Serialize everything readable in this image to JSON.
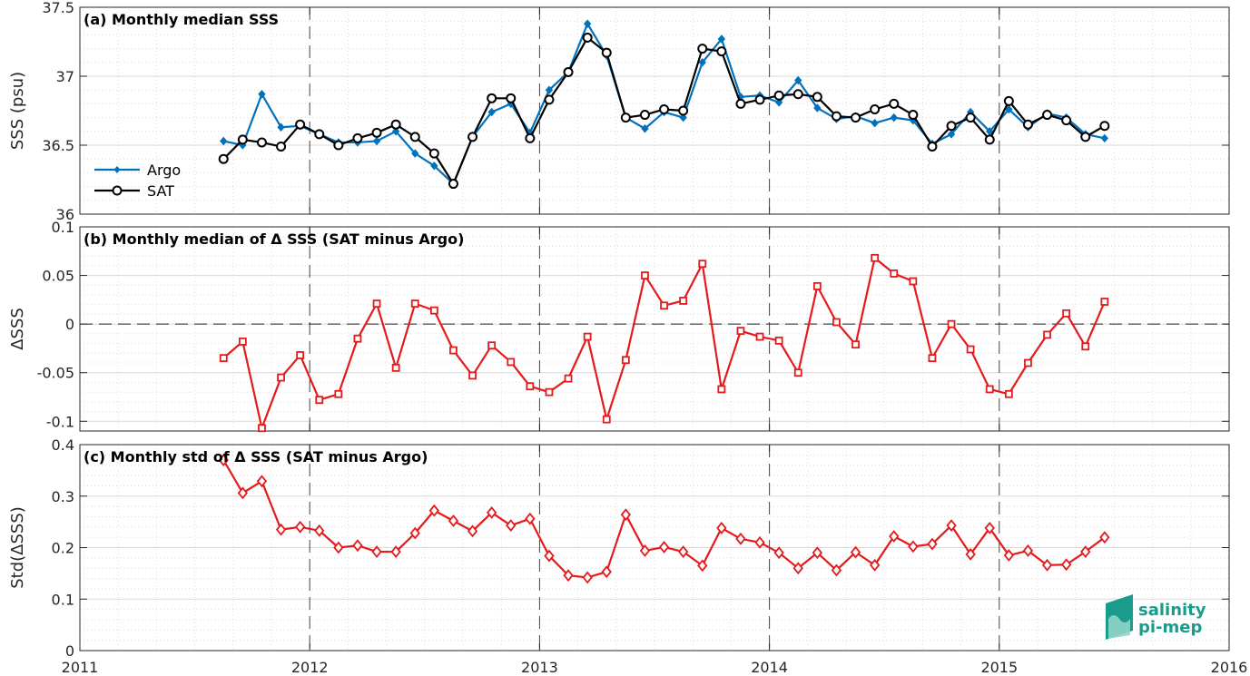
{
  "colors": {
    "argo": "#0072BD",
    "sat": "#000000",
    "delta": "#E41A1C",
    "logo_teal": "#1a9c8c",
    "logo_light": "#8fd6c8"
  },
  "x_axis": {
    "ticks": [
      "2011",
      "2012",
      "2013",
      "2014",
      "2015",
      "2016"
    ],
    "xlim": [
      2011,
      2016
    ]
  },
  "logo": {
    "line1": "salinity",
    "line2": "pi-mep"
  },
  "chart_data": [
    {
      "type": "line",
      "title": "(a) Monthly median SSS",
      "ylabel": "SSS (psu)",
      "ylim": [
        36,
        37.5
      ],
      "yticks": [
        "36",
        "36.5",
        "37",
        "37.5"
      ],
      "legend": "bottom-left",
      "grid": true,
      "x_start": "2011-08",
      "x_step": "1 month",
      "series": [
        {
          "name": "Argo",
          "marker": "diamond-filled",
          "values": [
            36.53,
            36.5,
            36.87,
            36.63,
            36.64,
            36.58,
            36.52,
            36.52,
            36.53,
            36.6,
            36.44,
            36.35,
            36.22,
            36.56,
            36.74,
            36.8,
            36.59,
            36.9,
            37.03,
            37.38,
            37.15,
            36.7,
            36.62,
            36.74,
            36.7,
            37.1,
            37.27,
            36.85,
            36.86,
            36.81,
            36.97,
            36.77,
            36.69,
            36.71,
            36.66,
            36.7,
            36.68,
            36.51,
            36.58,
            36.74,
            36.6,
            36.76,
            36.63,
            36.73,
            36.7,
            36.58,
            36.55
          ]
        },
        {
          "name": "SAT",
          "marker": "circle-open",
          "values": [
            36.4,
            36.54,
            36.52,
            36.49,
            36.65,
            36.58,
            36.5,
            36.55,
            36.59,
            36.65,
            36.56,
            36.44,
            36.22,
            36.56,
            36.84,
            36.84,
            36.55,
            36.83,
            37.03,
            37.28,
            37.17,
            36.7,
            36.72,
            36.76,
            36.75,
            37.2,
            37.18,
            36.8,
            36.83,
            36.86,
            36.87,
            36.85,
            36.71,
            36.7,
            36.76,
            36.8,
            36.72,
            36.49,
            36.64,
            36.7,
            36.54,
            36.82,
            36.65,
            36.72,
            36.68,
            36.56,
            36.64
          ]
        }
      ]
    },
    {
      "type": "line",
      "title": "(b) Monthly median of Δ SSS (SAT minus Argo)",
      "ylabel": "ΔSSS",
      "ylim": [
        -0.11,
        0.1
      ],
      "yticks": [
        "-0.1",
        "-0.05",
        "0",
        "0.05",
        "0.1"
      ],
      "grid": true,
      "zero_line": true,
      "x_start": "2011-08",
      "x_step": "1 month",
      "series": [
        {
          "marker": "square-open",
          "values": [
            -0.035,
            -0.018,
            -0.107,
            -0.055,
            -0.032,
            -0.078,
            -0.072,
            -0.015,
            0.021,
            -0.045,
            0.021,
            0.014,
            -0.027,
            -0.053,
            -0.022,
            -0.039,
            -0.064,
            -0.07,
            -0.056,
            -0.013,
            -0.098,
            -0.037,
            0.05,
            0.019,
            0.024,
            0.062,
            -0.067,
            -0.007,
            -0.013,
            -0.017,
            -0.05,
            0.039,
            0.002,
            -0.021,
            0.068,
            0.052,
            0.044,
            -0.035,
            0.0,
            -0.026,
            -0.067,
            -0.072,
            -0.04,
            -0.011,
            0.011,
            -0.023,
            0.023
          ]
        }
      ]
    },
    {
      "type": "line",
      "title": "(c) Monthly std of Δ SSS (SAT minus Argo)",
      "ylabel": "Std(ΔSSS)",
      "ylim": [
        0,
        0.4
      ],
      "yticks": [
        "0",
        "0.1",
        "0.2",
        "0.3",
        "0.4"
      ],
      "grid": true,
      "x_start": "2011-08",
      "x_step": "1 month",
      "series": [
        {
          "marker": "diamond-open",
          "values": [
            0.37,
            0.306,
            0.329,
            0.235,
            0.24,
            0.233,
            0.2,
            0.204,
            0.192,
            0.192,
            0.228,
            0.272,
            0.252,
            0.232,
            0.268,
            0.243,
            0.256,
            0.184,
            0.146,
            0.142,
            0.153,
            0.264,
            0.194,
            0.201,
            0.192,
            0.165,
            0.238,
            0.217,
            0.21,
            0.19,
            0.16,
            0.19,
            0.156,
            0.191,
            0.166,
            0.222,
            0.202,
            0.207,
            0.243,
            0.187,
            0.238,
            0.185,
            0.194,
            0.166,
            0.167,
            0.192,
            0.22
          ]
        }
      ]
    }
  ]
}
